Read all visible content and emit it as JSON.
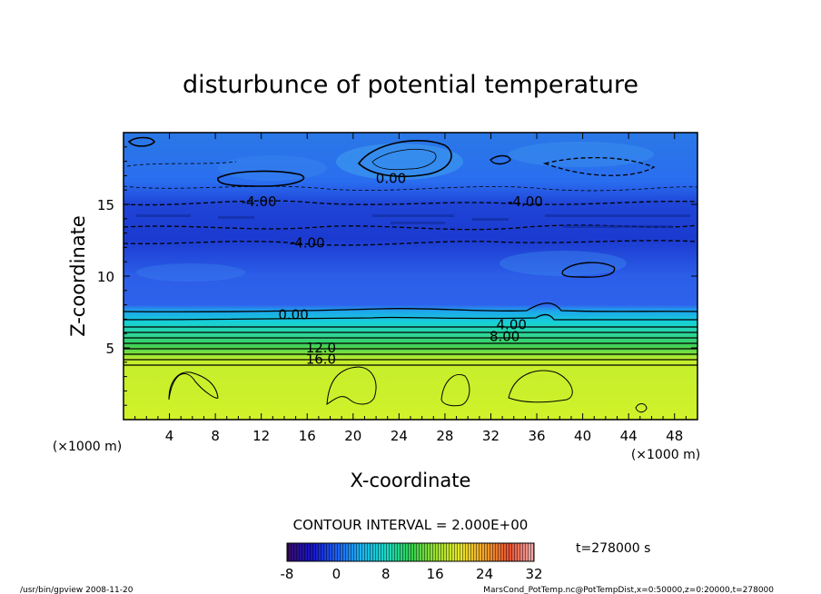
{
  "chart_data": {
    "type": "heatmap",
    "title": "disturbunce of potential temperature",
    "xlabel": "X-coordinate",
    "ylabel": "Z-coordinate",
    "x_unit_left": "(×1000 m)",
    "x_unit_right": "(×1000 m)",
    "xlim": [
      0,
      50
    ],
    "ylim": [
      0,
      20
    ],
    "x_ticks": [
      4,
      8,
      12,
      16,
      20,
      24,
      28,
      32,
      36,
      40,
      44,
      48
    ],
    "y_ticks": [
      5,
      10,
      15
    ],
    "contour_interval_text": "CONTOUR INTERVAL = 2.000E+00",
    "contour_labels": [
      {
        "text": "0.00",
        "x": 23.3,
        "z": 16.8
      },
      {
        "text": "-4.00",
        "x": 11.8,
        "z": 15.2
      },
      {
        "text": "-4.00",
        "x": 35.0,
        "z": 15.2
      },
      {
        "text": "-4.00",
        "x": 16.0,
        "z": 12.3
      },
      {
        "text": "0.00",
        "x": 14.8,
        "z": 7.3
      },
      {
        "text": "4.00",
        "x": 33.8,
        "z": 6.6
      },
      {
        "text": "8.00",
        "x": 33.2,
        "z": 5.8
      },
      {
        "text": "12.0",
        "x": 17.2,
        "z": 5.0
      },
      {
        "text": "16.0",
        "x": 17.2,
        "z": 4.2
      }
    ],
    "colorbar": {
      "min": -8,
      "max": 32,
      "tick_labels": [
        "-8",
        "0",
        "8",
        "16",
        "24",
        "32"
      ]
    },
    "time_label": "t=278000 s"
  },
  "footer": {
    "left": "/usr/bin/gpview   2008-11-20",
    "right": "MarsCond_PotTemp.nc@PotTempDist,x=0:50000,z=0:20000,t=278000"
  },
  "colors": {
    "deep_blue": "#1a2fd0",
    "mid_blue": "#2e6ef0",
    "cyan": "#18c8e8",
    "green": "#3ad05a",
    "yellow_green": "#ccf02a",
    "frame": "#000000"
  }
}
